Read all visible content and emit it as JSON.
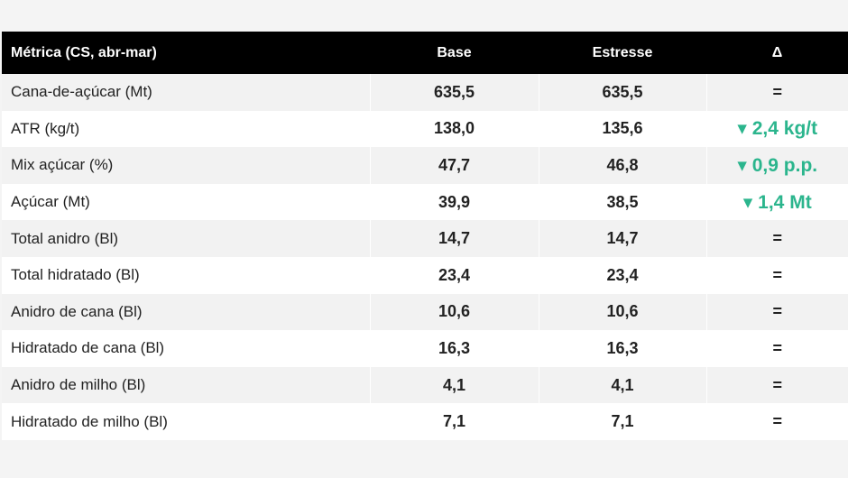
{
  "table": {
    "header": [
      "Métrica (CS, abr-mar)",
      "Base",
      "Estresse",
      "Δ"
    ],
    "rows": [
      [
        "Cana-de-açúcar (Mt)",
        "635,5",
        "635,5",
        "="
      ],
      [
        "ATR (kg/t)",
        "138,0",
        "135,6",
        "▾ 2,4 kg/t"
      ],
      [
        "Mix açúcar (%)",
        "47,7",
        "46,8",
        "▾ 0,9 p.p."
      ],
      [
        "Açúcar (Mt)",
        "39,9",
        "38,5",
        "▾ 1,4 Mt"
      ],
      [
        "Total anidro (Bl)",
        "14,7",
        "14,7",
        "="
      ],
      [
        "Total hidratado (Bl)",
        "23,4",
        "23,4",
        "="
      ],
      [
        "Anidro de cana (Bl)",
        "10,6",
        "10,6",
        "="
      ],
      [
        "Hidratado de cana (Bl)",
        "16,3",
        "16,3",
        "="
      ],
      [
        "Anidro de milho (Bl)",
        "4,1",
        "4,1",
        "="
      ],
      [
        "Hidratado de milho (Bl)",
        "7,1",
        "7,1",
        "="
      ]
    ]
  }
}
